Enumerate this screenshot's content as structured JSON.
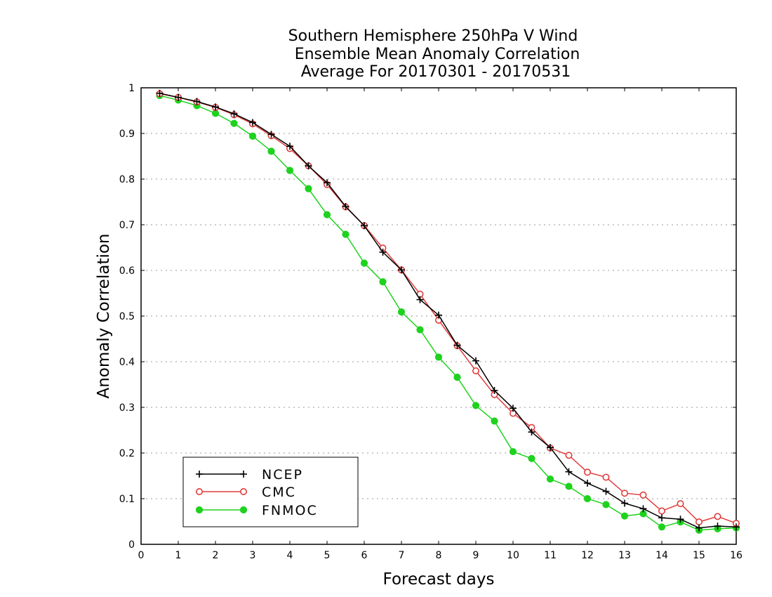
{
  "chart_data": {
    "type": "line",
    "title": [
      "Southern Hemisphere 250hPa V Wind",
      "Ensemble Mean Anomaly Correlation",
      "Average For 20170301 - 20170531"
    ],
    "xlabel": "Forecast days",
    "ylabel": "Anomaly Correlation",
    "xlim": [
      0,
      16
    ],
    "ylim": [
      0,
      1
    ],
    "xticks": [
      "0",
      "1",
      "2",
      "3",
      "4",
      "5",
      "6",
      "7",
      "8",
      "9",
      "10",
      "11",
      "12",
      "13",
      "14",
      "15",
      "16"
    ],
    "yticks": [
      "0",
      "0.1",
      "0.2",
      "0.3",
      "0.4",
      "0.5",
      "0.6",
      "0.7",
      "0.8",
      "0.9",
      "1"
    ],
    "grid": "horizontal dotted",
    "legend_position": "bottom-left",
    "x": [
      0.5,
      1,
      1.5,
      2,
      2.5,
      3,
      3.5,
      4,
      4.5,
      5,
      5.5,
      6,
      6.5,
      7,
      7.5,
      8,
      8.5,
      9,
      9.5,
      10,
      10.5,
      11,
      11.5,
      12,
      12.5,
      13,
      13.5,
      14,
      14.5,
      15,
      15.5,
      16
    ],
    "series": [
      {
        "name": "NCEP",
        "color": "#000000",
        "marker": "plus",
        "values": [
          0.988,
          0.979,
          0.97,
          0.958,
          0.943,
          0.924,
          0.898,
          0.872,
          0.829,
          0.792,
          0.74,
          0.698,
          0.64,
          0.601,
          0.536,
          0.502,
          0.436,
          0.402,
          0.337,
          0.298,
          0.246,
          0.212,
          0.159,
          0.134,
          0.116,
          0.09,
          0.078,
          0.058,
          0.055,
          0.036,
          0.04,
          0.038
        ]
      },
      {
        "name": "CMC",
        "color": "#e03c3c",
        "marker": "open-circle",
        "values": [
          0.987,
          0.979,
          0.969,
          0.957,
          0.941,
          0.921,
          0.895,
          0.867,
          0.829,
          0.788,
          0.739,
          0.698,
          0.649,
          0.601,
          0.548,
          0.491,
          0.435,
          0.38,
          0.328,
          0.287,
          0.256,
          0.211,
          0.195,
          0.158,
          0.147,
          0.112,
          0.108,
          0.073,
          0.089,
          0.049,
          0.061,
          0.046
        ]
      },
      {
        "name": "FNMOC",
        "color": "#1ed21e",
        "marker": "filled-circle",
        "values": [
          0.983,
          0.973,
          0.961,
          0.944,
          0.922,
          0.894,
          0.861,
          0.819,
          0.779,
          0.722,
          0.679,
          0.616,
          0.575,
          0.509,
          0.47,
          0.41,
          0.366,
          0.304,
          0.27,
          0.203,
          0.188,
          0.143,
          0.127,
          0.1,
          0.087,
          0.062,
          0.067,
          0.038,
          0.049,
          0.031,
          0.034,
          0.036
        ]
      }
    ]
  }
}
